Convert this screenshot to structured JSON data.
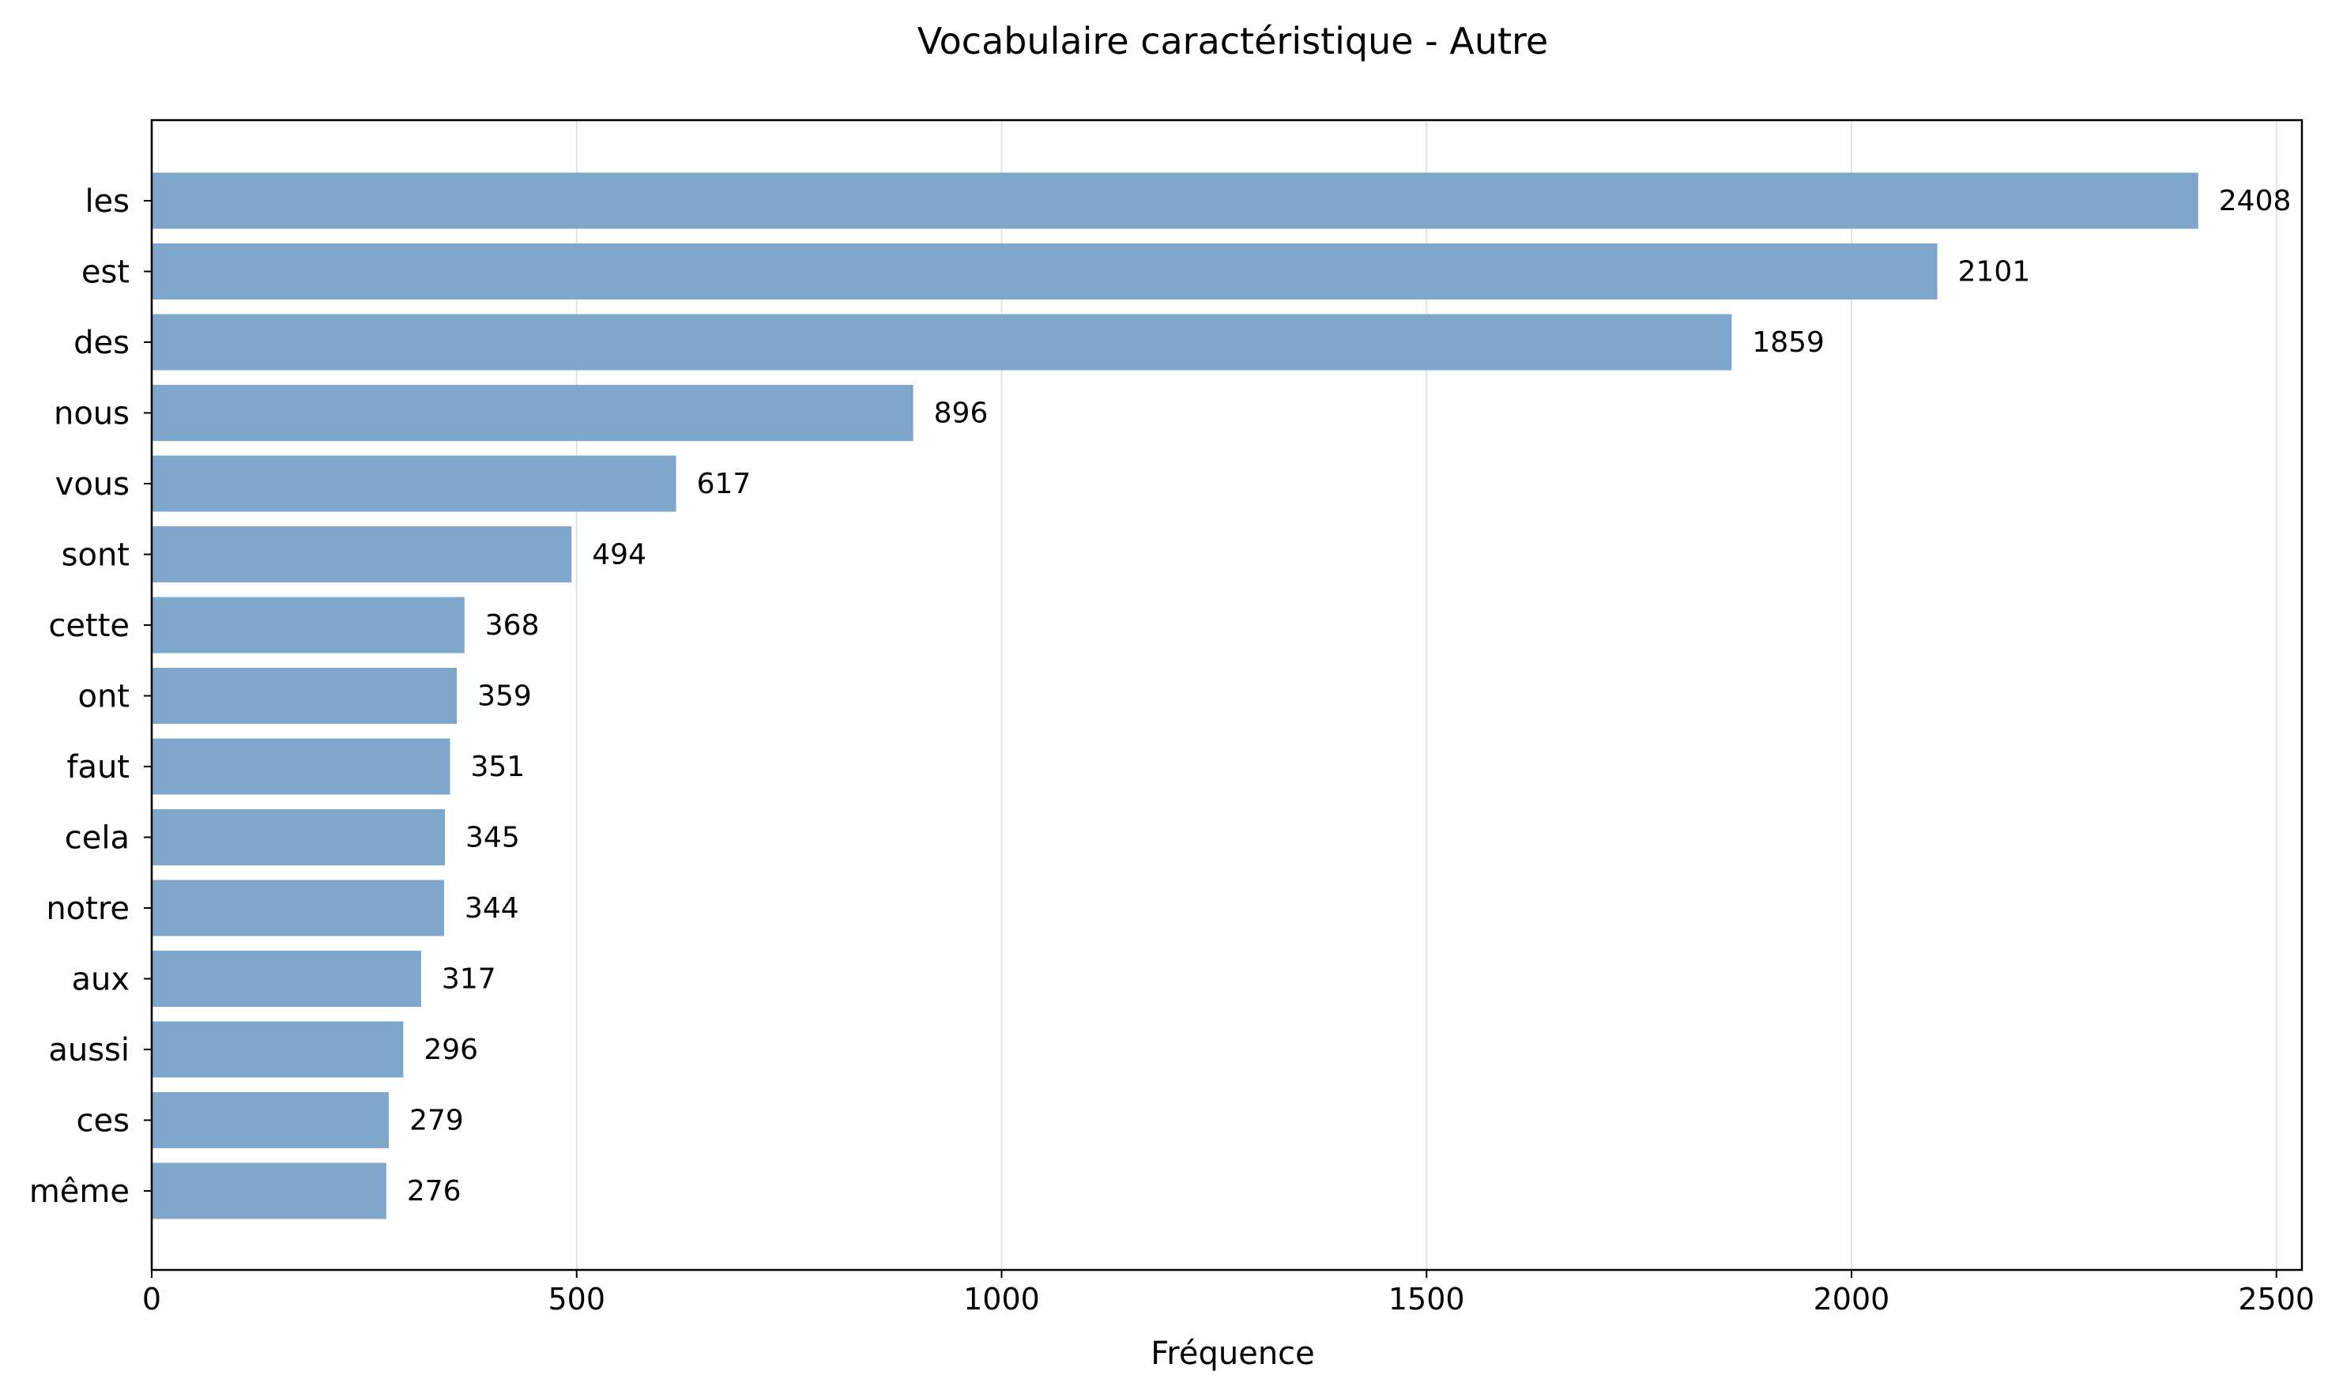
{
  "chart_data": {
    "type": "bar",
    "orientation": "horizontal",
    "title": "Vocabulaire caractéristique - Autre",
    "xlabel": "Fréquence",
    "ylabel": "",
    "categories": [
      "les",
      "est",
      "des",
      "nous",
      "vous",
      "sont",
      "cette",
      "ont",
      "faut",
      "cela",
      "notre",
      "aux",
      "aussi",
      "ces",
      "même"
    ],
    "values": [
      2408,
      2101,
      1859,
      896,
      617,
      494,
      368,
      359,
      351,
      345,
      344,
      317,
      296,
      279,
      276
    ],
    "xlim": [
      0,
      2530
    ],
    "xticks": [
      0,
      500,
      1000,
      1500,
      2000,
      2500
    ],
    "xtick_labels": [
      "0",
      "500",
      "1000",
      "1500",
      "2000",
      "2500"
    ],
    "grid": "vertical",
    "bar_color": "#7ea7cb",
    "grid_color": "#e3e3e3",
    "data_labels": [
      "2408",
      "2101",
      "1859",
      "896",
      "617",
      "494",
      "368",
      "359",
      "351",
      "345",
      "344",
      "317",
      "296",
      "279",
      "276"
    ]
  }
}
